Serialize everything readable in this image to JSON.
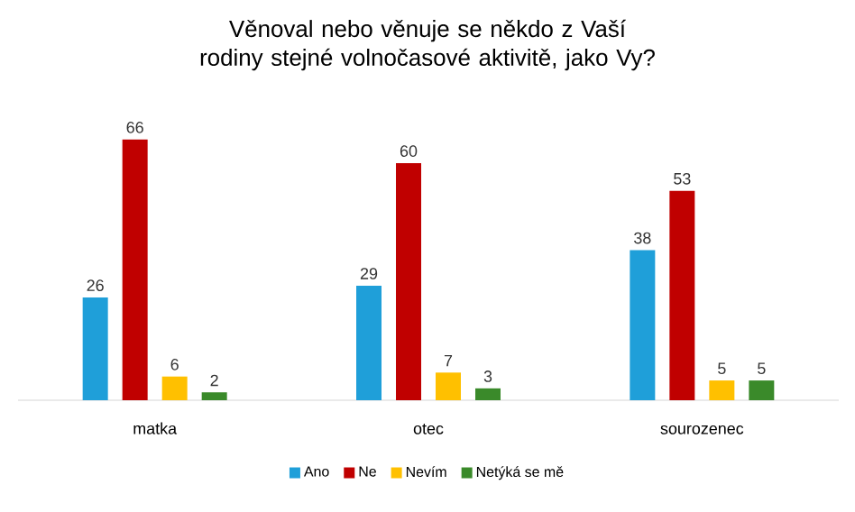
{
  "chart_data": {
    "type": "bar",
    "title": "Věnoval nebo věnuje se někdo z Vaší rodiny stejné volnočasové aktivitě, jako Vy?",
    "categories": [
      "matka",
      "otec",
      "sourozenec"
    ],
    "series": [
      {
        "name": "Ano",
        "color": "#1f9fd9",
        "values": [
          26,
          29,
          38
        ]
      },
      {
        "name": "Ne",
        "color": "#c00000",
        "values": [
          66,
          60,
          53
        ]
      },
      {
        "name": "Nevím",
        "color": "#ffc000",
        "values": [
          6,
          7,
          5
        ]
      },
      {
        "name": "Netýká se mě",
        "color": "#3a8a2a",
        "values": [
          2,
          3,
          5
        ]
      }
    ],
    "data_labels": true,
    "legend": "bottom"
  }
}
